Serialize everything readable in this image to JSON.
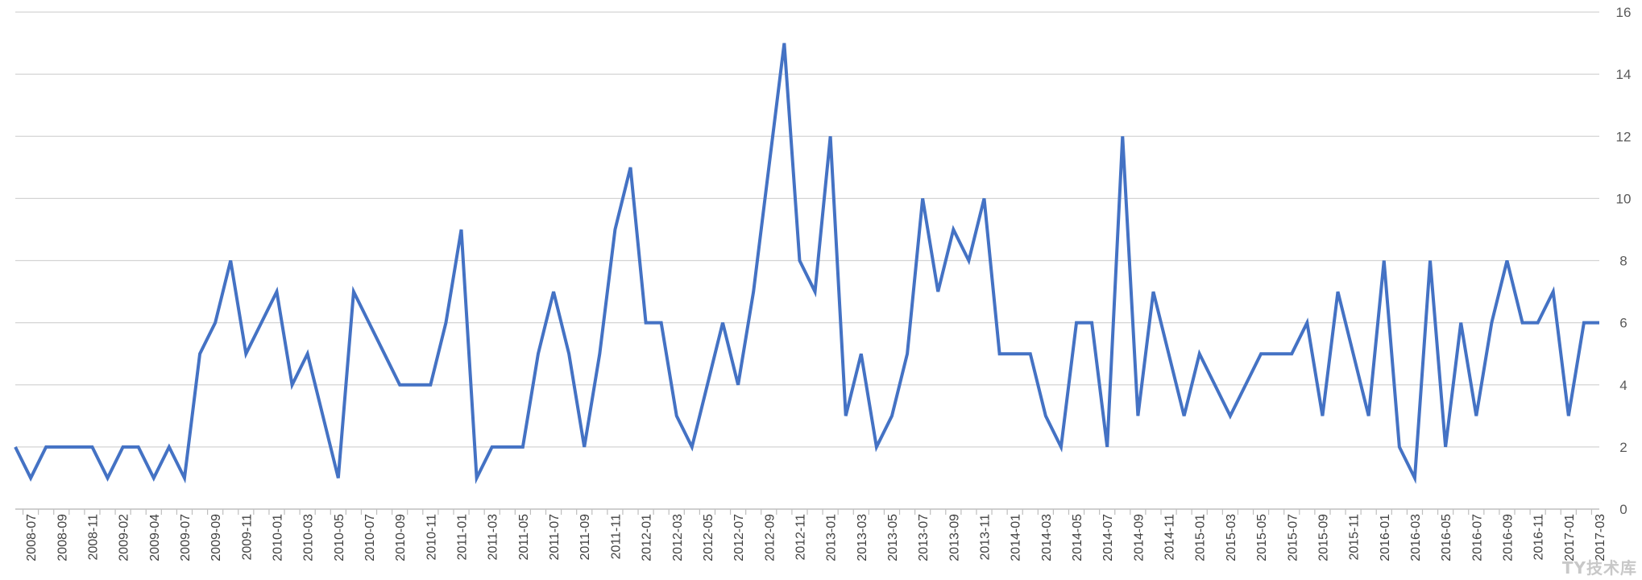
{
  "chart_data": {
    "type": "line",
    "title": "",
    "xlabel": "",
    "ylabel": "",
    "ylim": [
      0,
      16
    ],
    "y_ticks": [
      0,
      2,
      4,
      6,
      8,
      10,
      12,
      14,
      16
    ],
    "y_axis_side": "right",
    "grid": "horizontal",
    "legend": "none",
    "x_tick_labels": [
      "2008-07",
      "2008-09",
      "2008-11",
      "2009-02",
      "2009-04",
      "2009-07",
      "2009-09",
      "2009-11",
      "2010-01",
      "2010-03",
      "2010-05",
      "2010-07",
      "2010-09",
      "2010-11",
      "2011-01",
      "2011-03",
      "2011-05",
      "2011-07",
      "2011-09",
      "2011-11",
      "2012-01",
      "2012-03",
      "2012-05",
      "2012-07",
      "2012-09",
      "2012-11",
      "2013-01",
      "2013-03",
      "2013-05",
      "2013-07",
      "2013-09",
      "2013-11",
      "2014-01",
      "2014-03",
      "2014-05",
      "2014-07",
      "2014-09",
      "2014-11",
      "2015-01",
      "2015-03",
      "2015-05",
      "2015-07",
      "2015-09",
      "2015-11",
      "2016-01",
      "2016-03",
      "2016-05",
      "2016-07",
      "2016-09",
      "2016-11",
      "2017-01",
      "2017-03"
    ],
    "series": [
      {
        "color": "#4472c4",
        "values": [
          2,
          1,
          2,
          2,
          2,
          2,
          1,
          2,
          2,
          1,
          2,
          1,
          5,
          6,
          8,
          5,
          6,
          7,
          4,
          5,
          3,
          1,
          7,
          6,
          5,
          4,
          4,
          4,
          6,
          9,
          1,
          2,
          2,
          2,
          5,
          7,
          5,
          2,
          5,
          9,
          11,
          6,
          6,
          3,
          2,
          4,
          6,
          4,
          7,
          11,
          15,
          8,
          7,
          12,
          3,
          5,
          2,
          3,
          5,
          10,
          7,
          9,
          8,
          10,
          5,
          5,
          5,
          3,
          2,
          6,
          6,
          2,
          12,
          3,
          7,
          5,
          3,
          5,
          4,
          3,
          4,
          5,
          5,
          5,
          6,
          3,
          7,
          5,
          3,
          8,
          2,
          1,
          8,
          2,
          6,
          3,
          6,
          8,
          6,
          6,
          7,
          3,
          6,
          6
        ]
      }
    ]
  },
  "watermark": "TY技术库"
}
